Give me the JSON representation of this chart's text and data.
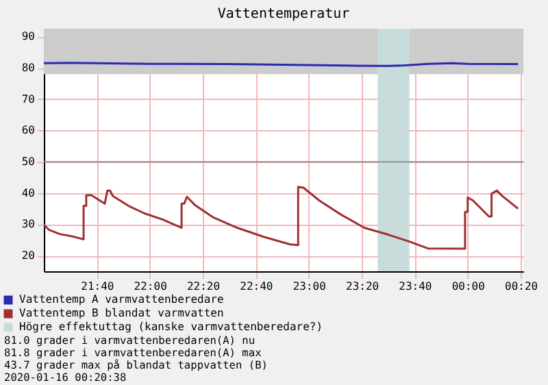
{
  "chart_data": {
    "type": "line",
    "title": "Vattentemperatur",
    "series": [
      {
        "name": "Vattentemp A varmvattenberedare",
        "color": "#2a2ab0",
        "x": [
          "2020-01-15T21:20",
          "2020-01-15T21:30",
          "2020-01-15T22:00",
          "2020-01-15T22:30",
          "2020-01-15T23:00",
          "2020-01-15T23:18",
          "2020-01-15T23:30",
          "2020-01-15T23:36",
          "2020-01-15T23:45",
          "2020-01-15T23:54",
          "2020-01-16T00:00",
          "2020-01-16T00:19"
        ],
        "values": [
          81.5,
          81.6,
          81.3,
          81.2,
          80.9,
          80.7,
          80.6,
          80.8,
          81.3,
          81.5,
          81.3,
          81.2
        ]
      },
      {
        "name": "Vattentemp B blandat varmvatten",
        "color": "#a03030",
        "x": [
          "2020-01-15T21:20",
          "2020-01-15T21:22",
          "2020-01-15T21:26",
          "2020-01-15T21:31",
          "2020-01-15T21:35",
          "2020-01-15T21:35",
          "2020-01-15T21:36",
          "2020-01-15T21:36",
          "2020-01-15T21:38",
          "2020-01-15T21:43",
          "2020-01-15T21:44",
          "2020-01-15T21:45",
          "2020-01-15T21:46",
          "2020-01-15T21:52",
          "2020-01-15T21:58",
          "2020-01-15T22:05",
          "2020-01-15T22:12",
          "2020-01-15T22:12",
          "2020-01-15T22:13",
          "2020-01-15T22:14",
          "2020-01-15T22:17",
          "2020-01-15T22:24",
          "2020-01-15T22:33",
          "2020-01-15T22:43",
          "2020-01-15T22:53",
          "2020-01-15T22:56",
          "2020-01-15T22:56",
          "2020-01-15T22:56",
          "2020-01-15T22:56",
          "2020-01-15T22:58",
          "2020-01-15T23:04",
          "2020-01-15T23:12",
          "2020-01-15T23:21",
          "2020-01-15T23:30",
          "2020-01-15T23:38",
          "2020-01-15T23:45",
          "2020-01-15T23:59",
          "2020-01-15T23:59",
          "2020-01-16T00:00",
          "2020-01-16T00:00",
          "2020-01-16T00:02",
          "2020-01-16T00:08",
          "2020-01-16T00:09",
          "2020-01-16T00:09",
          "2020-01-16T00:11",
          "2020-01-16T00:13",
          "2020-01-16T00:19"
        ],
        "values": [
          29.9,
          28.2,
          26.9,
          26.1,
          25.2,
          35.9,
          35.9,
          39.3,
          39.3,
          36.6,
          40.8,
          40.8,
          39.1,
          35.9,
          33.5,
          31.5,
          28.9,
          36.6,
          36.6,
          38.8,
          36.2,
          32.2,
          28.9,
          26.0,
          23.6,
          23.4,
          37.2,
          37.2,
          42.0,
          41.7,
          37.6,
          33.2,
          28.9,
          26.7,
          24.5,
          22.3,
          22.2,
          34.0,
          34.0,
          38.6,
          37.6,
          32.5,
          32.5,
          39.8,
          40.8,
          39.1,
          35.0
        ]
      }
    ],
    "xlim": [
      "2020-01-15T21:20",
      "2020-01-16T00:21"
    ],
    "xticks": [
      {
        "value": "2020-01-15T21:40",
        "label": "21:40"
      },
      {
        "value": "2020-01-15T22:00",
        "label": "22:00"
      },
      {
        "value": "2020-01-15T22:20",
        "label": "22:20"
      },
      {
        "value": "2020-01-15T22:40",
        "label": "22:40"
      },
      {
        "value": "2020-01-15T23:00",
        "label": "23:00"
      },
      {
        "value": "2020-01-15T23:20",
        "label": "23:20"
      },
      {
        "value": "2020-01-15T23:40",
        "label": "23:40"
      },
      {
        "value": "2020-01-16T00:00",
        "label": "00:00"
      },
      {
        "value": "2020-01-16T00:20",
        "label": "00:20"
      }
    ],
    "ylim": [
      15,
      92.5
    ],
    "yticks": [
      20,
      30,
      40,
      50,
      60,
      70,
      80,
      90
    ],
    "bands": [
      {
        "axis": "y",
        "from": 78,
        "to": 92.5,
        "color": "#cccccc"
      },
      {
        "axis": "x",
        "from": "2020-01-15T23:26",
        "to": "2020-01-15T23:38",
        "label": "Högre effektuttag (kanske varmvattenberedare?)",
        "color": "#c9dcdc"
      }
    ],
    "ref_lines": [
      {
        "axis": "y",
        "value": 50,
        "color": "#909090"
      }
    ],
    "grid": true,
    "legend": "bottom",
    "annotations": [
      "81.0 grader i varmvattenberedaren(A) nu",
      "81.8 grader i varmvattenberedaren(A) max",
      "43.7 grader max på blandat tappvatten (B)",
      "2020-01-16 00:20:38"
    ]
  }
}
